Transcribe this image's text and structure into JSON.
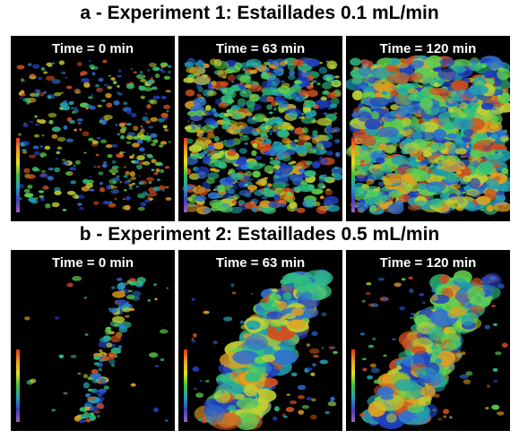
{
  "sections": [
    {
      "title": "a - Experiment 1: Estaillades 0.1 mL/min",
      "panels": [
        {
          "label": "Time = 0 min"
        },
        {
          "label": "Time = 63 min"
        },
        {
          "label": "Time = 120 min"
        }
      ]
    },
    {
      "title": "b - Experiment 2: Estaillades 0.5 mL/min",
      "panels": [
        {
          "label": "Time = 0 min"
        },
        {
          "label": "Time = 63 min"
        },
        {
          "label": "Time = 120 min"
        }
      ]
    }
  ]
}
